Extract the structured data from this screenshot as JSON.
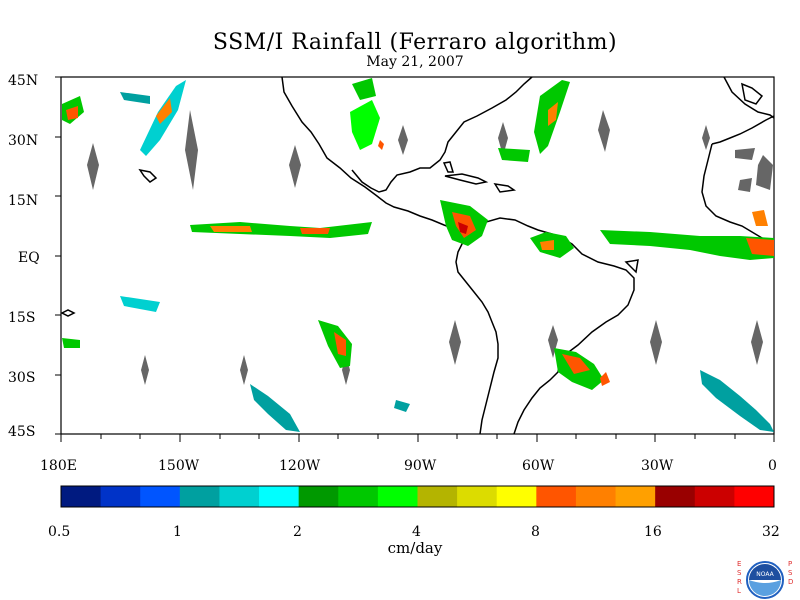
{
  "title": "SSM/I Rainfall (Ferraro algorithm)",
  "subtitle": "May 21, 2007",
  "colorbar": {
    "unit_label": "cm/day",
    "tick_labels": [
      "0.5",
      "1",
      "2",
      "4",
      "8",
      "16",
      "32"
    ],
    "colors": [
      "#001a80",
      "#0033c8",
      "#0055ff",
      "#00a0a0",
      "#00d0d0",
      "#00ffff",
      "#009900",
      "#00c800",
      "#00ff00",
      "#b4b400",
      "#dcdc00",
      "#ffff00",
      "#ff5500",
      "#ff8000",
      "#ffa000",
      "#990000",
      "#cc0000",
      "#ff0000"
    ]
  },
  "map": {
    "lat_labels": [
      "45N",
      "30N",
      "15N",
      "EQ",
      "15S",
      "30S",
      "45S"
    ],
    "lon_labels": [
      "180E",
      "150W",
      "120W",
      "90W",
      "60W",
      "30W",
      "0"
    ],
    "land_color": "#000000",
    "gap_color": "#666666"
  },
  "logo": {
    "left_letters": "ESRL",
    "right_letters": "PSD",
    "center_text": "NOAA"
  }
}
